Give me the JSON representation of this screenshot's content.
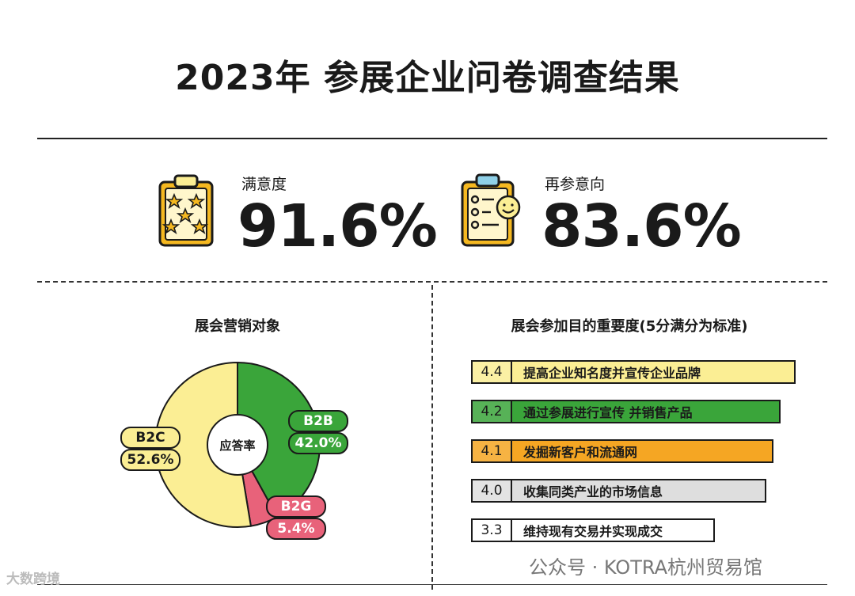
{
  "title": "2023年 参展企业问卷调查结果",
  "satisfaction": {
    "label": "满意度",
    "value": "91.6%"
  },
  "revisit": {
    "label": "再参意向",
    "value": "83.6%"
  },
  "pie": {
    "title": "展会营销对象",
    "center_label": "应答率"
  },
  "bars": {
    "title": "展会参加目的重要度(5分满分为标准)"
  },
  "chart_data": [
    {
      "type": "pie",
      "title": "展会营销对象",
      "center_label": "应答率",
      "slices": [
        {
          "label": "B2B",
          "value": 42.0,
          "display": "42.0%",
          "color": "#3aa53a"
        },
        {
          "label": "B2G",
          "value": 5.4,
          "display": "5.4%",
          "color": "#e8627a"
        },
        {
          "label": "B2C",
          "value": 52.6,
          "display": "52.6%",
          "color": "#fbee94"
        }
      ]
    },
    {
      "type": "bar",
      "title": "展会参加目的重要度(5分满分为标准)",
      "xlim": [
        0,
        5
      ],
      "categories": [
        "提高企业知名度并宣传企业品牌",
        "通过参展进行宣传 并销售产品",
        "发掘新客户和流通网",
        "收集同类产业的市场信息",
        "维持现有交易并实现成交"
      ],
      "values": [
        4.4,
        4.2,
        4.1,
        4.0,
        3.3
      ],
      "display": [
        "4.4",
        "4.2",
        "4.1",
        "4.0",
        "3.3"
      ],
      "colors": [
        "#fbee94",
        "#3aa53a",
        "#f5a623",
        "#dedede",
        "#ffffff"
      ]
    }
  ],
  "footer": {
    "watermark": "公众号 · KOTRA杭州贸易馆",
    "logo": "大数跨境"
  }
}
